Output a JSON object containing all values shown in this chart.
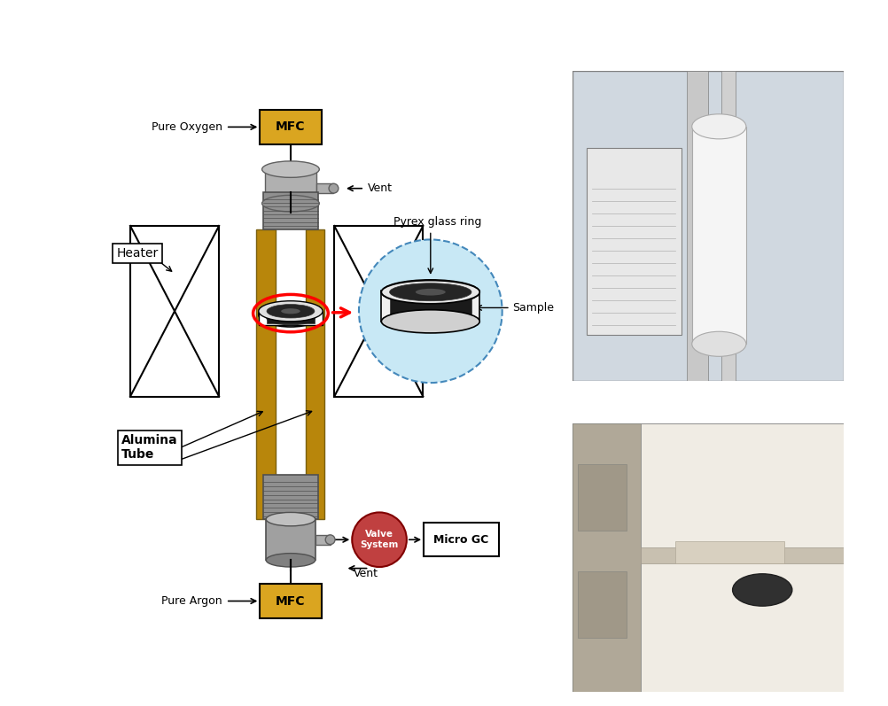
{
  "fig_width": 10.02,
  "fig_height": 7.97,
  "bg_color": "#ffffff",
  "diagram_labels": {
    "MFC_top": "MFC",
    "MFC_bottom": "MFC",
    "pure_oxygen": "Pure Oxygen",
    "pure_argon": "Pure Argon",
    "vent_top": "Vent",
    "vent_bottom": "Vent",
    "heater": "Heater",
    "alumina_tube": "Alumina\nTube",
    "pyrex": "Pyrex glass ring",
    "sample": "Sample",
    "valve": "Valve\nSystem",
    "micro_gc": "Micro GC"
  },
  "colors": {
    "mfc_box": "#DAA520",
    "alumina_tube": "#B8860B",
    "connector_gray": "#A0A0A0",
    "dark_gray": "#606060",
    "heater_panel": "#ffffff",
    "heater_border": "#000000",
    "red_ellipse": "#FF0000",
    "red_arrow": "#FF0000",
    "pyrex_bg": "#ADD8E6",
    "sample_black": "#1a1a1a",
    "valve_red": "#C04040",
    "micro_gc_border": "#000000"
  }
}
